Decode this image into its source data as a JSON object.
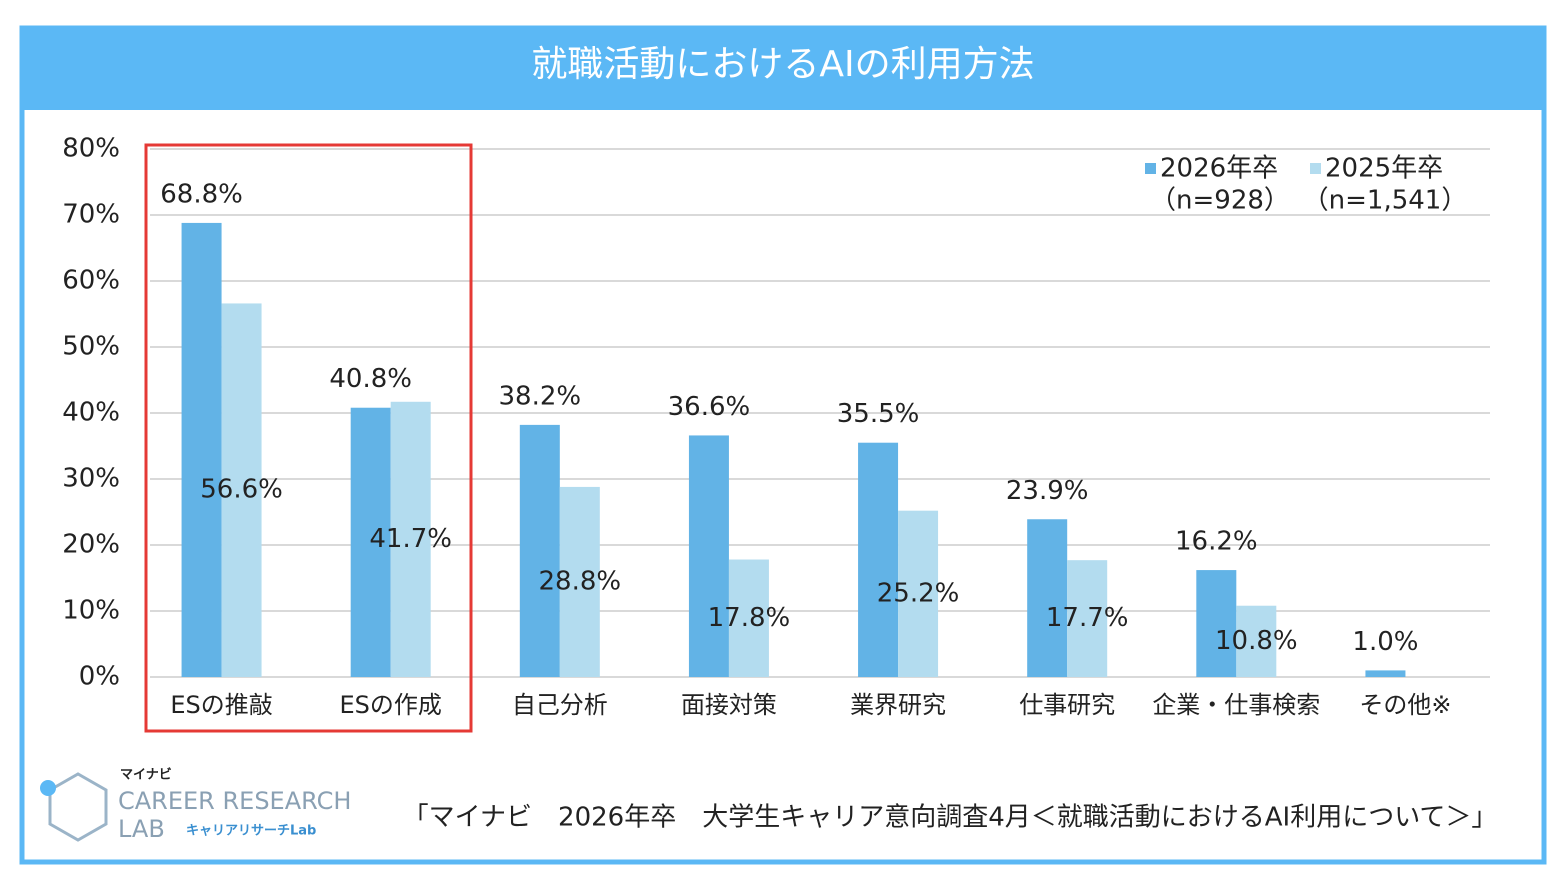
{
  "chart_data": {
    "type": "bar",
    "title": "就職活動におけるAIの利用方法",
    "categories": [
      "ESの推敲",
      "ESの作成",
      "自己分析",
      "面接対策",
      "業界研究",
      "仕事研究",
      "企業・仕事検索",
      "その他※"
    ],
    "series": [
      {
        "name": "2026年卒",
        "sample_label": "（n=928）",
        "color": "#62b3e6",
        "values": [
          68.8,
          40.8,
          38.2,
          36.6,
          35.5,
          23.9,
          16.2,
          1.0
        ],
        "value_labels": [
          "68.8%",
          "40.8%",
          "38.2%",
          "36.6%",
          "35.5%",
          "23.9%",
          "16.2%",
          "1.0%"
        ]
      },
      {
        "name": "2025年卒",
        "sample_label": "（n=1,541）",
        "color": "#b3dcef",
        "values": [
          56.6,
          41.7,
          28.8,
          17.8,
          25.2,
          17.7,
          10.8,
          null
        ],
        "value_labels": [
          "56.6%",
          "41.7%",
          "28.8%",
          "17.8%",
          "25.2%",
          "17.7%",
          "10.8%",
          null
        ]
      }
    ],
    "ylim": [
      0,
      80
    ],
    "yticks": [
      {
        "value": 0,
        "label": "0%"
      },
      {
        "value": 10,
        "label": "10%"
      },
      {
        "value": 20,
        "label": "20%"
      },
      {
        "value": 30,
        "label": "30%"
      },
      {
        "value": 40,
        "label": "40%"
      },
      {
        "value": 50,
        "label": "50%"
      },
      {
        "value": 60,
        "label": "60%"
      },
      {
        "value": 70,
        "label": "70%"
      },
      {
        "value": 80,
        "label": "80%"
      }
    ],
    "grid": true,
    "legend": "top-right"
  },
  "footer": {
    "source": "「マイナビ　2026年卒　大学生キャリア意向調査4月＜就職活動におけるAI利用について＞」"
  },
  "logo": {
    "brand": "マイナビ",
    "line1": "CAREER RESEARCH",
    "line2": "LAB",
    "sub": "キャリアリサーチLab"
  }
}
